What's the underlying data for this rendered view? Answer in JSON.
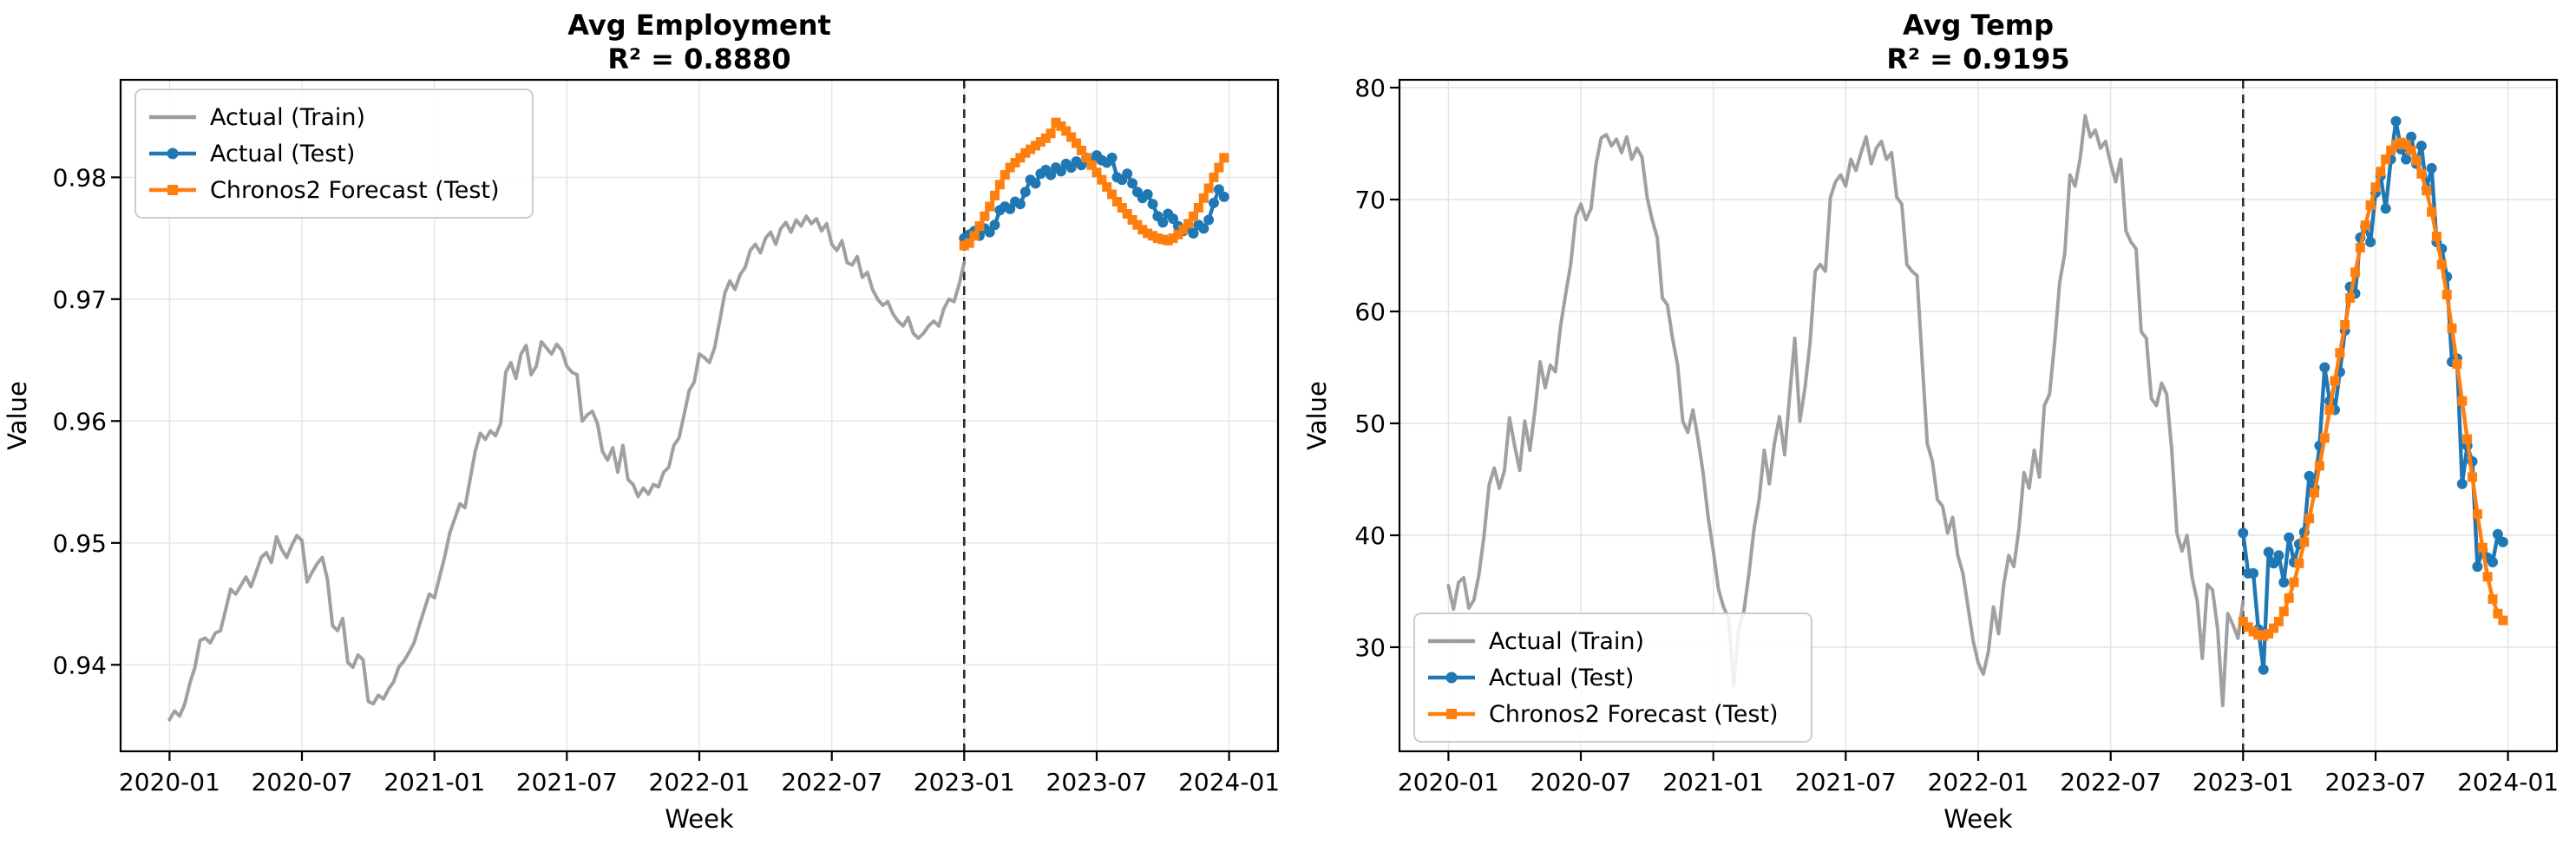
{
  "figure": {
    "background": "#ffffff",
    "description": "Two weekly time-series forecast evaluation plots"
  },
  "chart_data": [
    {
      "type": "line",
      "title": "Avg Employment",
      "subtitle": "R² = 0.8880",
      "xlabel": "Week",
      "ylabel": "Value",
      "x_unit": "weeks since 2020-01-05",
      "x_tick_positions": [
        0,
        26,
        52,
        78,
        104,
        130,
        156,
        182,
        208
      ],
      "x_tick_labels": [
        "2020-01",
        "2020-07",
        "2021-01",
        "2021-07",
        "2022-01",
        "2022-07",
        "2023-01",
        "2023-07",
        "2024-01"
      ],
      "xlim": [
        -9.6,
        217.6
      ],
      "ylim": [
        0.9329,
        0.988
      ],
      "y_ticks": [
        0.94,
        0.95,
        0.96,
        0.97,
        0.98
      ],
      "y_tick_labels": [
        "0.94",
        "0.95",
        "0.96",
        "0.97",
        "0.98"
      ],
      "grid": true,
      "legend_loc": "upper-left",
      "split_x": 156,
      "colors": {
        "train": "#9b9b9b",
        "test": "#1f77b4",
        "forecast": "#ff7f0e",
        "split": "#2e2e2e",
        "grid": "#e4e4e4",
        "spine": "#000000",
        "legend_frame": "#cccccc"
      },
      "series": [
        {
          "name": "Actual (Train)",
          "key": "train",
          "marker": "none",
          "x_start": 0,
          "values": [
            0.9355,
            0.9362,
            0.9358,
            0.9368,
            0.9385,
            0.9398,
            0.942,
            0.9422,
            0.9418,
            0.9426,
            0.9428,
            0.9445,
            0.9462,
            0.9458,
            0.9465,
            0.9472,
            0.9464,
            0.9476,
            0.9488,
            0.9492,
            0.9484,
            0.9505,
            0.9495,
            0.9488,
            0.9498,
            0.9506,
            0.9502,
            0.9468,
            0.9476,
            0.9483,
            0.9488,
            0.947,
            0.9432,
            0.9428,
            0.9438,
            0.9402,
            0.9398,
            0.9408,
            0.9404,
            0.937,
            0.9368,
            0.9375,
            0.9372,
            0.938,
            0.9386,
            0.9398,
            0.9403,
            0.941,
            0.9418,
            0.9432,
            0.9445,
            0.9458,
            0.9455,
            0.9472,
            0.9488,
            0.9508,
            0.952,
            0.9532,
            0.9529,
            0.9552,
            0.9575,
            0.959,
            0.9585,
            0.9592,
            0.9588,
            0.9598,
            0.964,
            0.9648,
            0.9635,
            0.9655,
            0.9662,
            0.9638,
            0.9645,
            0.9665,
            0.966,
            0.9655,
            0.9663,
            0.9658,
            0.9645,
            0.964,
            0.9638,
            0.96,
            0.9605,
            0.9608,
            0.9598,
            0.9575,
            0.9568,
            0.9578,
            0.9558,
            0.958,
            0.9552,
            0.9548,
            0.9538,
            0.9545,
            0.954,
            0.9548,
            0.9546,
            0.9558,
            0.9562,
            0.958,
            0.9586,
            0.9605,
            0.9625,
            0.9632,
            0.9655,
            0.9652,
            0.9648,
            0.966,
            0.9682,
            0.9705,
            0.9715,
            0.9708,
            0.972,
            0.9726,
            0.974,
            0.9745,
            0.9738,
            0.975,
            0.9755,
            0.9745,
            0.9758,
            0.9763,
            0.9755,
            0.9765,
            0.976,
            0.9768,
            0.9762,
            0.9766,
            0.9756,
            0.9762,
            0.9745,
            0.974,
            0.9748,
            0.973,
            0.9728,
            0.9735,
            0.9718,
            0.9722,
            0.9708,
            0.97,
            0.9695,
            0.9698,
            0.9688,
            0.9682,
            0.9678,
            0.9685,
            0.9672,
            0.9668,
            0.9672,
            0.9678,
            0.9682,
            0.9678,
            0.9692,
            0.97,
            0.9698,
            0.9712,
            0.973
          ]
        },
        {
          "name": "Actual (Test)",
          "key": "test",
          "marker": "circle",
          "x_start": 156,
          "values": [
            0.975,
            0.9753,
            0.9756,
            0.9752,
            0.9758,
            0.9755,
            0.9761,
            0.9773,
            0.9776,
            0.9774,
            0.978,
            0.9778,
            0.9788,
            0.9798,
            0.9795,
            0.9803,
            0.9806,
            0.9802,
            0.9808,
            0.9805,
            0.9811,
            0.9808,
            0.9813,
            0.981,
            0.9816,
            0.9812,
            0.9818,
            0.9814,
            0.9812,
            0.9816,
            0.98,
            0.9798,
            0.9803,
            0.9795,
            0.9788,
            0.9783,
            0.9786,
            0.9778,
            0.9768,
            0.9763,
            0.977,
            0.9766,
            0.976,
            0.9756,
            0.9758,
            0.9754,
            0.9761,
            0.9758,
            0.9765,
            0.9779,
            0.979,
            0.9784
          ]
        },
        {
          "name": "Chronos2 Forecast (Test)",
          "key": "forecast",
          "marker": "square",
          "x_start": 156,
          "values": [
            0.9744,
            0.9746,
            0.9752,
            0.976,
            0.9768,
            0.9776,
            0.9785,
            0.9794,
            0.9802,
            0.9808,
            0.9812,
            0.9816,
            0.982,
            0.9823,
            0.9826,
            0.9829,
            0.9832,
            0.9836,
            0.9845,
            0.9842,
            0.9838,
            0.9833,
            0.9828,
            0.9822,
            0.9816,
            0.981,
            0.9804,
            0.9798,
            0.9792,
            0.9786,
            0.978,
            0.9775,
            0.977,
            0.9765,
            0.9761,
            0.9757,
            0.9754,
            0.9752,
            0.975,
            0.9749,
            0.9748,
            0.975,
            0.9753,
            0.9757,
            0.9762,
            0.9768,
            0.9775,
            0.9783,
            0.9791,
            0.98,
            0.9808,
            0.9816
          ]
        }
      ]
    },
    {
      "type": "line",
      "title": "Avg Temp",
      "subtitle": "R² = 0.9195",
      "xlabel": "Week",
      "ylabel": "Value",
      "x_unit": "weeks since 2020-01-05",
      "x_tick_positions": [
        0,
        26,
        52,
        78,
        104,
        130,
        156,
        182,
        208
      ],
      "x_tick_labels": [
        "2020-01",
        "2020-07",
        "2021-01",
        "2021-07",
        "2022-01",
        "2022-07",
        "2023-01",
        "2023-07",
        "2024-01"
      ],
      "xlim": [
        -9.6,
        217.6
      ],
      "ylim": [
        20.7,
        80.7
      ],
      "y_ticks": [
        30,
        40,
        50,
        60,
        70,
        80
      ],
      "y_tick_labels": [
        "30",
        "40",
        "50",
        "60",
        "70",
        "80"
      ],
      "grid": true,
      "legend_loc": "lower-left",
      "split_x": 156,
      "colors": {
        "train": "#9b9b9b",
        "test": "#1f77b4",
        "forecast": "#ff7f0e",
        "split": "#2e2e2e",
        "grid": "#e4e4e4",
        "spine": "#000000",
        "legend_frame": "#cccccc"
      },
      "series": [
        {
          "name": "Actual (Train)",
          "key": "train",
          "marker": "none",
          "x_start": 0,
          "values": [
            35.5,
            33.4,
            35.8,
            36.2,
            33.5,
            34.2,
            36.5,
            40.0,
            44.5,
            46.0,
            44.2,
            45.8,
            50.5,
            48.0,
            45.8,
            50.2,
            47.6,
            51.2,
            55.5,
            53.2,
            55.2,
            54.6,
            58.6,
            61.5,
            64.2,
            68.5,
            69.6,
            68.2,
            69.2,
            73.2,
            75.5,
            75.8,
            74.8,
            75.4,
            74.2,
            75.6,
            73.6,
            74.6,
            73.8,
            70.2,
            68.2,
            66.6,
            61.2,
            60.6,
            57.6,
            55.2,
            50.2,
            49.2,
            51.2,
            48.6,
            45.6,
            41.6,
            38.6,
            35.2,
            33.6,
            32.6,
            26.6,
            31.6,
            33.2,
            36.6,
            40.6,
            43.2,
            47.6,
            44.6,
            48.2,
            50.6,
            47.2,
            52.6,
            57.6,
            50.2,
            53.2,
            57.2,
            63.6,
            64.2,
            63.6,
            70.2,
            71.6,
            72.2,
            71.2,
            73.6,
            72.6,
            74.2,
            75.6,
            73.2,
            74.6,
            75.2,
            73.6,
            74.2,
            70.2,
            69.6,
            64.2,
            63.6,
            63.2,
            55.6,
            48.2,
            46.6,
            43.2,
            42.6,
            40.2,
            41.6,
            38.2,
            36.6,
            33.6,
            30.6,
            28.6,
            27.6,
            29.6,
            33.6,
            31.2,
            35.6,
            38.2,
            37.2,
            40.6,
            45.6,
            44.2,
            47.6,
            45.2,
            51.6,
            52.6,
            57.2,
            62.6,
            65.2,
            72.2,
            71.2,
            73.6,
            77.5,
            75.6,
            76.2,
            74.6,
            75.2,
            73.2,
            71.6,
            73.6,
            67.2,
            66.2,
            65.6,
            58.2,
            57.6,
            52.2,
            51.6,
            53.6,
            52.6,
            47.6,
            40.2,
            38.6,
            40.0,
            36.2,
            34.1,
            29.0,
            35.6,
            35.1,
            31.6,
            24.8,
            33.0,
            32.0,
            30.8,
            34.1
          ]
        },
        {
          "name": "Actual (Test)",
          "key": "test",
          "marker": "circle",
          "x_start": 156,
          "values": [
            40.2,
            36.6,
            36.6,
            31.6,
            28.0,
            38.5,
            37.5,
            38.2,
            35.8,
            39.8,
            37.6,
            39.2,
            40.3,
            45.3,
            44.2,
            48.0,
            55.0,
            52.0,
            51.2,
            54.6,
            58.3,
            62.2,
            61.6,
            66.6,
            67.6,
            66.2,
            70.6,
            72.1,
            69.2,
            73.6,
            77.0,
            74.5,
            73.6,
            75.6,
            73.2,
            74.8,
            71.0,
            72.8,
            66.2,
            65.6,
            63.1,
            55.5,
            55.8,
            44.6,
            48.0,
            46.6,
            37.2,
            38.7,
            38.0,
            37.6,
            40.1,
            39.4
          ]
        },
        {
          "name": "Chronos2 Forecast (Test)",
          "key": "forecast",
          "marker": "square",
          "x_start": 156,
          "values": [
            32.3,
            31.8,
            31.4,
            31.1,
            31.0,
            31.2,
            31.7,
            32.3,
            33.2,
            34.4,
            35.8,
            37.5,
            39.4,
            41.5,
            43.8,
            46.2,
            48.7,
            51.2,
            53.8,
            56.3,
            58.8,
            61.2,
            63.5,
            65.7,
            67.7,
            69.5,
            71.1,
            72.5,
            73.6,
            74.4,
            74.9,
            75.1,
            74.9,
            74.4,
            73.5,
            72.3,
            70.8,
            68.9,
            66.7,
            64.2,
            61.5,
            58.5,
            55.3,
            52.0,
            48.6,
            45.2,
            41.9,
            38.9,
            36.3,
            34.3,
            33.0,
            32.4
          ]
        }
      ]
    }
  ]
}
